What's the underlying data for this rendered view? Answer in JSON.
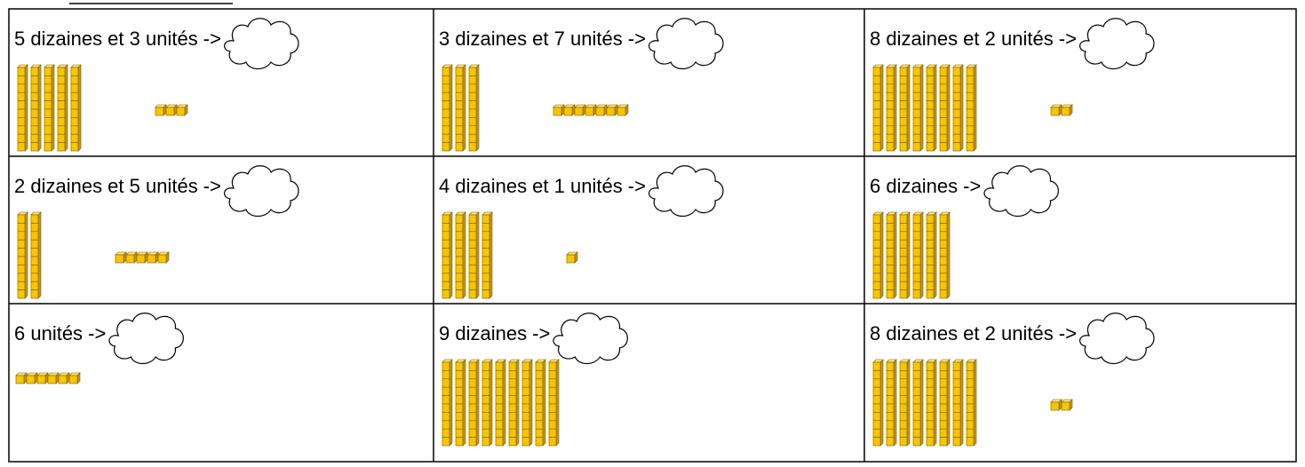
{
  "cells": [
    {
      "label": "5 dizaines et 3 unités ->",
      "tens": 5,
      "units": 3
    },
    {
      "label": "3 dizaines et 7 unités ->",
      "tens": 3,
      "units": 7
    },
    {
      "label": "8 dizaines et 2 unités ->",
      "tens": 8,
      "units": 2
    },
    {
      "label": "2 dizaines et 5 unités ->",
      "tens": 2,
      "units": 5
    },
    {
      "label": "4 dizaines et 1 unités ->",
      "tens": 4,
      "units": 1
    },
    {
      "label": "6 dizaines ->",
      "tens": 6,
      "units": 0
    },
    {
      "label": "6 unités ->",
      "tens": 0,
      "units": 6
    },
    {
      "label": "9 dizaines ->",
      "tens": 9,
      "units": 0
    },
    {
      "label": "8 dizaines et 2 unités ->",
      "tens": 8,
      "units": 2
    }
  ]
}
